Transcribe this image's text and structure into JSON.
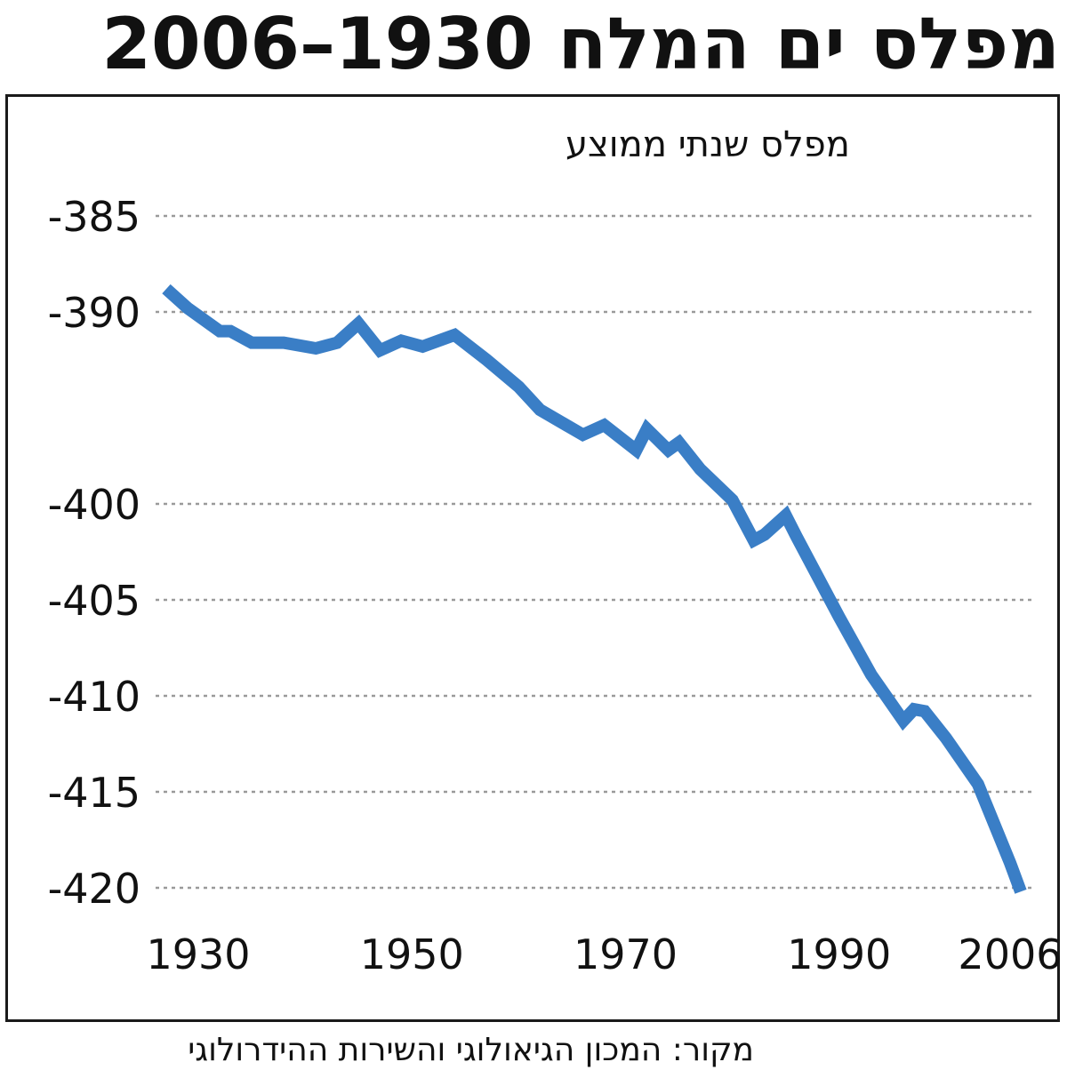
{
  "title": "מפלס ים המלח 1930–2006",
  "source": "מקור: המכון הגיאולוגי והשירות ההידרולוגי",
  "colors": {
    "line": "#3a7ec6",
    "grid": "#9a9a9a",
    "frame": "#1a1a1a"
  },
  "chart_data": {
    "type": "line",
    "title": "מפלס ים המלח 1930–2006",
    "ylabel": "מפלס שנתי ממוצע",
    "xlabel": "",
    "ylim": [
      -420,
      -385
    ],
    "xlim": [
      1926,
      2008
    ],
    "grid": true,
    "yticks": [
      -385,
      -390,
      -400,
      -405,
      -410,
      -415,
      -420
    ],
    "ytick_labels": [
      "-385",
      "-390",
      "-400",
      "-405",
      "-410",
      "-415",
      "-420"
    ],
    "xticks": [
      1930,
      1950,
      1970,
      1990,
      2006
    ],
    "xtick_labels": [
      "1930",
      "1950",
      "1970",
      "1990",
      "2006"
    ],
    "series": [
      {
        "values_x": [
          1927,
          1929,
          1932,
          1933,
          1935,
          1938,
          1941,
          1943,
          1945,
          1947,
          1949,
          1951,
          1954,
          1957,
          1960,
          1962,
          1966,
          1968,
          1971,
          1972,
          1974,
          1975,
          1977,
          1980,
          1982,
          1983,
          1985,
          1986,
          1990,
          1993,
          1996,
          1997,
          1998,
          2000,
          2003,
          2006,
          2007
        ],
        "values": [
          -388.8,
          -389.8,
          -391.0,
          -391.0,
          -391.6,
          -391.6,
          -391.9,
          -391.6,
          -390.6,
          -392.0,
          -391.5,
          -391.8,
          -391.2,
          -392.5,
          -393.9,
          -395.1,
          -396.4,
          -395.9,
          -397.2,
          -396.1,
          -397.2,
          -396.8,
          -398.2,
          -399.8,
          -401.9,
          -401.6,
          -400.6,
          -401.7,
          -405.9,
          -408.9,
          -411.3,
          -410.7,
          -410.8,
          -412.2,
          -414.6,
          -418.7,
          -420.2
        ]
      }
    ]
  }
}
